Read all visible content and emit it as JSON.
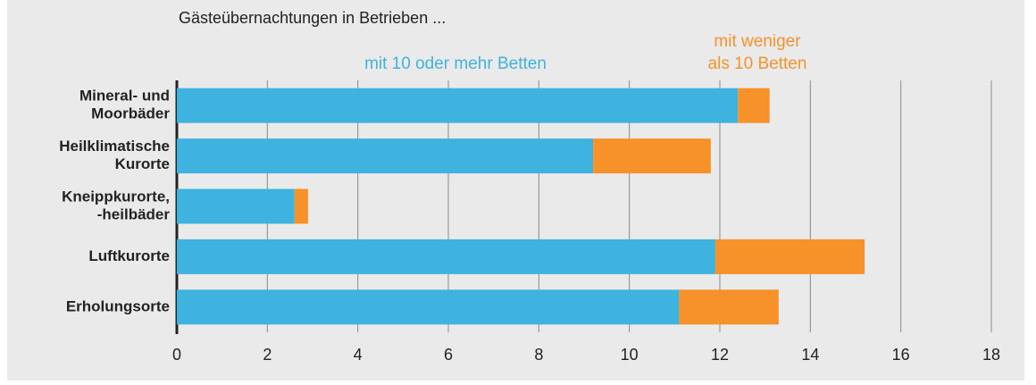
{
  "chart_data": {
    "type": "stacked-barh",
    "title": "Gästeübernachtungen in Betrieben ...",
    "categories": [
      [
        "Mineral- und",
        "Moorbäder"
      ],
      [
        "Heilklimatische",
        "Kurorte"
      ],
      [
        "Kneippkurorte,",
        "-heilbäder"
      ],
      [
        "Luftkurorte"
      ],
      [
        "Erholungsorte"
      ]
    ],
    "series": [
      {
        "name": [
          "mit 10 oder mehr Betten"
        ],
        "color": "#3fb3df",
        "values": [
          12.4,
          9.2,
          2.6,
          11.9,
          11.1
        ]
      },
      {
        "name": [
          "mit weniger",
          "als 10 Betten"
        ],
        "color": "#f7922a",
        "values": [
          0.7,
          2.6,
          0.3,
          3.3,
          2.2
        ]
      }
    ],
    "xlim": [
      0,
      18
    ],
    "xticks": [
      0,
      2,
      4,
      6,
      8,
      10,
      12,
      14,
      16,
      18
    ],
    "grid": true
  }
}
